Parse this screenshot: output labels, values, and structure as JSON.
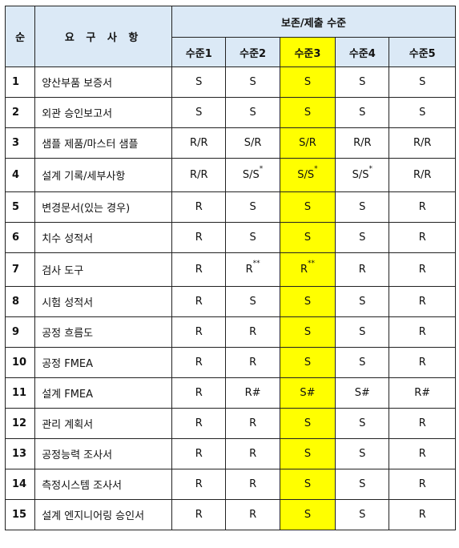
{
  "table": {
    "header": {
      "seq_label": "순",
      "req_label": "요 구 사 항",
      "group_label": "보존/제출 수준",
      "levels": [
        "수준1",
        "수준2",
        "수준3",
        "수준4",
        "수준5"
      ]
    },
    "rows": [
      {
        "no": "1",
        "req": "양산부품 보증서",
        "vals": [
          "S",
          "S",
          "S",
          "S",
          "S"
        ]
      },
      {
        "no": "2",
        "req": "외관 승인보고서",
        "vals": [
          "S",
          "S",
          "S",
          "S",
          "S"
        ]
      },
      {
        "no": "3",
        "req": "샘플 제품/마스터 샘플",
        "vals": [
          "R/R",
          "S/R",
          "S/R",
          "R/R",
          "R/R"
        ]
      },
      {
        "no": "4",
        "req": "설계 기록/세부사항",
        "vals": [
          "R/R",
          "S/S",
          "S/S",
          "S/S",
          "R/R"
        ],
        "sup": [
          "",
          "*",
          "*",
          "*",
          ""
        ]
      },
      {
        "no": "5",
        "req": "변경문서(있는 경우)",
        "vals": [
          "R",
          "S",
          "S",
          "S",
          "R"
        ]
      },
      {
        "no": "6",
        "req": "치수 성적서",
        "vals": [
          "R",
          "S",
          "S",
          "S",
          "R"
        ]
      },
      {
        "no": "7",
        "req": "검사 도구",
        "vals": [
          "R",
          "R",
          "R",
          "R",
          "R"
        ],
        "sup": [
          "",
          "**",
          "**",
          "",
          ""
        ]
      },
      {
        "no": "8",
        "req": "시험 성적서",
        "vals": [
          "R",
          "S",
          "S",
          "S",
          "R"
        ]
      },
      {
        "no": "9",
        "req": "공정 흐름도",
        "vals": [
          "R",
          "R",
          "S",
          "S",
          "R"
        ]
      },
      {
        "no": "10",
        "req": "공정 FMEA",
        "vals": [
          "R",
          "R",
          "S",
          "S",
          "R"
        ]
      },
      {
        "no": "11",
        "req": "설계 FMEA",
        "vals": [
          "R",
          "R#",
          "S#",
          "S#",
          "R#"
        ]
      },
      {
        "no": "12",
        "req": "관리 계획서",
        "vals": [
          "R",
          "R",
          "S",
          "S",
          "R"
        ]
      },
      {
        "no": "13",
        "req": "공정능력 조사서",
        "vals": [
          "R",
          "R",
          "S",
          "S",
          "R"
        ]
      },
      {
        "no": "14",
        "req": "측정시스템 조사서",
        "vals": [
          "R",
          "R",
          "S",
          "S",
          "R"
        ]
      },
      {
        "no": "15",
        "req": "설계 엔지니어링 승인서",
        "vals": [
          "R",
          "R",
          "S",
          "S",
          "R"
        ]
      }
    ],
    "highlight_color": "#ffff00",
    "header_color": "#dbe9f6"
  }
}
